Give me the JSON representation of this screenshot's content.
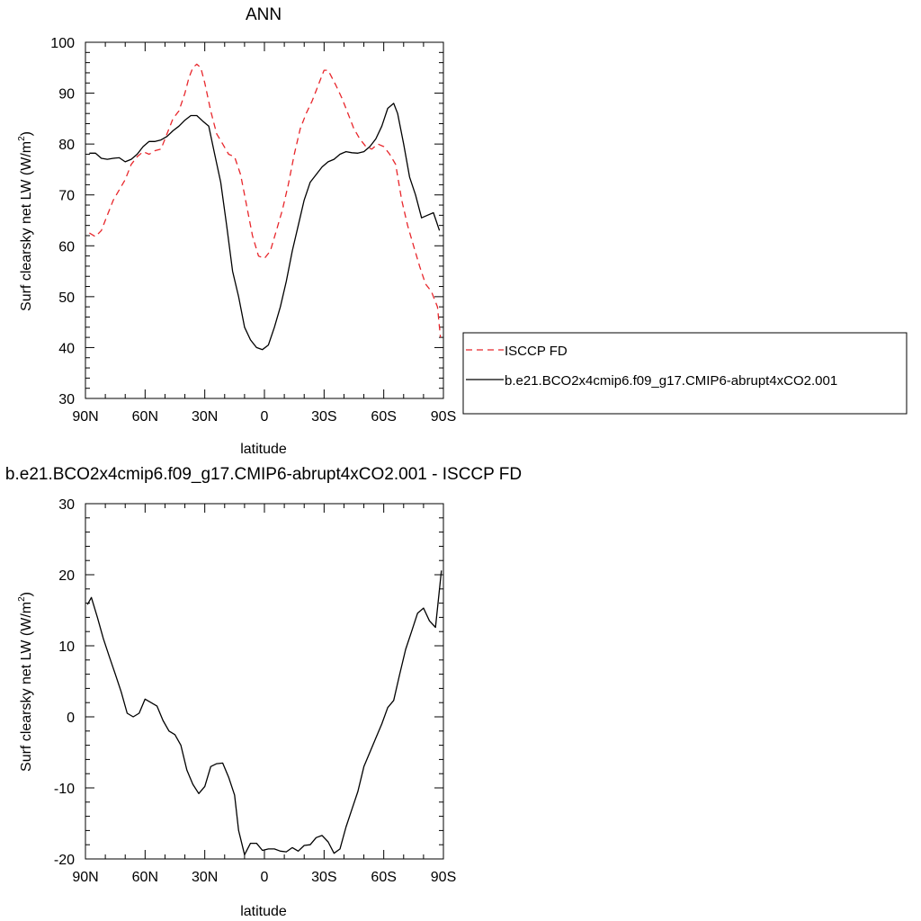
{
  "chart_data": [
    {
      "type": "line",
      "title": "ANN",
      "xlabel": "latitude",
      "ylabel": "Surf clearsky net LW (W/m",
      "ylabel_sup": "2",
      "ylabel_close": ")",
      "xlim": [
        90,
        -90
      ],
      "ylim": [
        30,
        100
      ],
      "xticks": [
        90,
        60,
        30,
        0,
        -30,
        -60,
        -90
      ],
      "xtick_labels": [
        "90N",
        "60N",
        "30N",
        "0",
        "30S",
        "60S",
        "90S"
      ],
      "yticks": [
        30,
        40,
        50,
        60,
        70,
        80,
        90,
        100
      ],
      "ytick_labels": [
        "30",
        "40",
        "50",
        "60",
        "70",
        "80",
        "90",
        "100"
      ],
      "legend_position": "right",
      "series": [
        {
          "name": "ISCCP FD",
          "color": "#e8262b",
          "dash": "dashed",
          "x": [
            88,
            85,
            82,
            79,
            76,
            73,
            70,
            67,
            64,
            61,
            58,
            55,
            52,
            49,
            46,
            43,
            40,
            38,
            36,
            34,
            32,
            30,
            27,
            24,
            21,
            18,
            15,
            12,
            9,
            6,
            3,
            0,
            -3,
            -6,
            -9,
            -12,
            -15,
            -18,
            -21,
            -24,
            -27,
            -30,
            -32,
            -34,
            -36,
            -39,
            -42,
            -45,
            -48,
            -51,
            -54,
            -57,
            -60,
            -63,
            -66,
            -69,
            -72,
            -75,
            -78,
            -81,
            -84,
            -87,
            -88.5
          ],
          "y": [
            62.5,
            61.8,
            63,
            66,
            69,
            71,
            73,
            76,
            77.5,
            78.5,
            78,
            78.7,
            79,
            82,
            85,
            86.5,
            90,
            93,
            95,
            95.7,
            95,
            92,
            86.5,
            82,
            80,
            78,
            77.5,
            74,
            68,
            62,
            58,
            57.5,
            59,
            63,
            67,
            72,
            78,
            83,
            86,
            88.5,
            91.5,
            94.5,
            94.5,
            93,
            91.5,
            89,
            86,
            83,
            81,
            79.5,
            79,
            80,
            79.5,
            78,
            76,
            69,
            64,
            60,
            56,
            52.5,
            51,
            48,
            42
          ]
        },
        {
          "name": "b.e21.BCO2x4cmip6.f09_g17.CMIP6-abrupt4xCO2.001",
          "color": "#000000",
          "dash": "solid",
          "x": [
            88,
            85,
            82,
            79,
            76,
            73,
            70,
            67,
            64,
            61,
            58,
            55,
            52,
            49,
            46,
            43,
            40,
            37,
            34,
            31,
            28,
            25,
            22,
            19,
            16,
            13,
            10,
            7,
            4,
            1,
            -2,
            -5,
            -8,
            -11,
            -14,
            -17,
            -20,
            -23,
            -26,
            -29,
            -32,
            -35,
            -38,
            -41,
            -44,
            -47,
            -50,
            -53,
            -56,
            -59,
            -62,
            -65,
            -67,
            -70,
            -73,
            -76,
            -79,
            -82,
            -85,
            -88
          ],
          "y": [
            78.2,
            78.2,
            77.2,
            77,
            77.2,
            77.3,
            76.5,
            77,
            78,
            79.5,
            80.5,
            80.5,
            80.8,
            81.5,
            82.6,
            83.5,
            84.7,
            85.6,
            85.6,
            84.5,
            83.5,
            78,
            72.5,
            64,
            55,
            50,
            44,
            41.5,
            40,
            39.6,
            40.5,
            44,
            48,
            53,
            59,
            64,
            69,
            72.5,
            74,
            75.5,
            76.5,
            77,
            78,
            78.5,
            78.3,
            78.2,
            78.5,
            79.5,
            81,
            83.5,
            87,
            88,
            86,
            80,
            73.5,
            70,
            65.5,
            66,
            66.5,
            63
          ]
        }
      ]
    },
    {
      "type": "line",
      "title": "b.e21.BCO2x4cmip6.f09_g17.CMIP6-abrupt4xCO2.001 - ISCCP FD",
      "xlabel": "latitude",
      "ylabel": "Surf clearsky net LW (W/m",
      "ylabel_sup": "2",
      "ylabel_close": ")",
      "xlim": [
        90,
        -90
      ],
      "ylim": [
        -20,
        30
      ],
      "xticks": [
        90,
        60,
        30,
        0,
        -30,
        -60,
        -90
      ],
      "xtick_labels": [
        "90N",
        "60N",
        "30N",
        "0",
        "30S",
        "60S",
        "90S"
      ],
      "yticks": [
        -20,
        -10,
        0,
        10,
        20,
        30
      ],
      "ytick_labels": [
        "-20",
        "-10",
        "0",
        "10",
        "20",
        "30"
      ],
      "series": [
        {
          "color": "#000000",
          "dash": "solid",
          "x": [
            89,
            87,
            84,
            81,
            78,
            75,
            72,
            69,
            66,
            63,
            60,
            57,
            54,
            51,
            48,
            45,
            42,
            39,
            36,
            33,
            30,
            27,
            24,
            21,
            18,
            15,
            13,
            10,
            7,
            4,
            1,
            -2,
            -5,
            -8,
            -11,
            -14,
            -17,
            -20,
            -23,
            -26,
            -29,
            -32,
            -35,
            -38,
            -41,
            -44,
            -47,
            -50,
            -53,
            -56,
            -59,
            -62,
            -65,
            -68,
            -71,
            -74,
            -77,
            -80,
            -83,
            -86,
            -89
          ],
          "y": [
            15.8,
            16.8,
            14,
            11,
            8.5,
            6,
            3.5,
            0.5,
            0,
            0.5,
            2.5,
            2,
            1.5,
            -0.5,
            -2,
            -2.5,
            -4,
            -7.5,
            -9.5,
            -10.8,
            -9.8,
            -7,
            -6.6,
            -6.5,
            -8.5,
            -11,
            -16,
            -19.4,
            -17.8,
            -17.8,
            -18.8,
            -18.6,
            -18.6,
            -18.9,
            -19,
            -18.4,
            -18.9,
            -18.1,
            -18,
            -17,
            -16.7,
            -17.6,
            -19.2,
            -18.6,
            -15.5,
            -13,
            -10.5,
            -7,
            -5,
            -3,
            -1,
            1.3,
            2.3,
            6,
            9.5,
            12,
            14.6,
            15.3,
            13.5,
            12.6,
            20.6
          ]
        }
      ]
    }
  ]
}
